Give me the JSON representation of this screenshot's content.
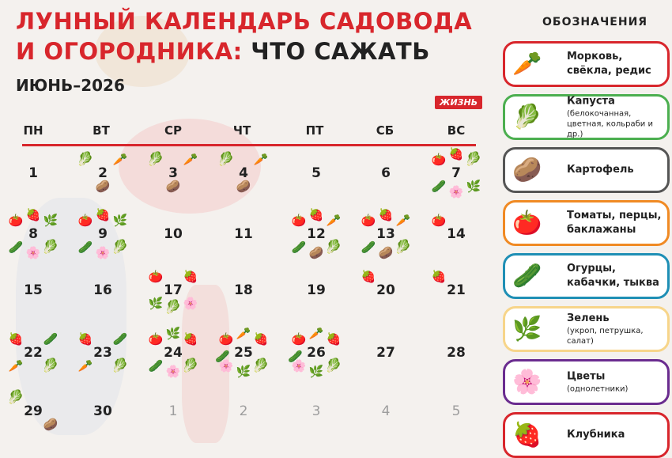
{
  "title": {
    "line1": "ЛУННЫЙ КАЛЕНДАРЬ САДОВОДА",
    "line2_red": "И ОГОРОДНИКА:",
    "line2_dark": "ЧТО САЖАТЬ"
  },
  "month": "ИЮНЬ–2026",
  "brand": "ЖИЗНЬ",
  "weekdays": [
    "ПН",
    "ВТ",
    "СР",
    "ЧТ",
    "ПТ",
    "СБ",
    "ВС"
  ],
  "icons": {
    "carrot": "🥕",
    "cabbage": "🥬",
    "potato": "🥔",
    "tomato": "🍅",
    "cucumber": "🥒",
    "greens": "🌿",
    "flower": "🌸",
    "strawberry": "🍓"
  },
  "days": [
    {
      "d": "1",
      "icons": []
    },
    {
      "d": "2",
      "icons": [
        "cabbage",
        "carrot",
        "potato"
      ]
    },
    {
      "d": "3",
      "icons": [
        "cabbage",
        "carrot",
        "potato"
      ]
    },
    {
      "d": "4",
      "icons": [
        "cabbage",
        "carrot",
        "potato"
      ]
    },
    {
      "d": "5",
      "icons": []
    },
    {
      "d": "6",
      "icons": []
    },
    {
      "d": "7",
      "icons": [
        "tomato",
        "strawberry",
        "cabbage",
        "cucumber",
        "flower",
        "greens"
      ]
    },
    {
      "d": "8",
      "icons": [
        "tomato",
        "strawberry",
        "greens",
        "cucumber",
        "flower",
        "cabbage"
      ]
    },
    {
      "d": "9",
      "icons": [
        "tomato",
        "strawberry",
        "greens",
        "cucumber",
        "flower",
        "cabbage"
      ]
    },
    {
      "d": "10",
      "icons": []
    },
    {
      "d": "11",
      "icons": []
    },
    {
      "d": "12",
      "icons": [
        "tomato",
        "strawberry",
        "carrot",
        "cucumber",
        "potato",
        "cabbage"
      ]
    },
    {
      "d": "13",
      "icons": [
        "tomato",
        "strawberry",
        "carrot",
        "cucumber",
        "potato",
        "cabbage"
      ]
    },
    {
      "d": "14",
      "icons": [
        "tomato"
      ]
    },
    {
      "d": "15",
      "icons": []
    },
    {
      "d": "16",
      "icons": []
    },
    {
      "d": "17",
      "icons": [
        "tomato",
        "strawberry",
        "greens",
        "cabbage",
        "flower"
      ]
    },
    {
      "d": "18",
      "icons": []
    },
    {
      "d": "19",
      "icons": []
    },
    {
      "d": "20",
      "icons": [
        "strawberry"
      ]
    },
    {
      "d": "21",
      "icons": [
        "strawberry"
      ]
    },
    {
      "d": "22",
      "icons": [
        "strawberry",
        "cucumber",
        "carrot",
        "cabbage"
      ]
    },
    {
      "d": "23",
      "icons": [
        "strawberry",
        "cucumber",
        "carrot",
        "cabbage"
      ]
    },
    {
      "d": "24",
      "icons": [
        "tomato",
        "greens",
        "strawberry",
        "cucumber",
        "flower",
        "cabbage"
      ]
    },
    {
      "d": "25",
      "icons": [
        "tomato",
        "carrot",
        "strawberry",
        "cucumber",
        "flower",
        "greens",
        "cabbage"
      ]
    },
    {
      "d": "26",
      "icons": [
        "tomato",
        "carrot",
        "strawberry",
        "cucumber",
        "flower",
        "greens",
        "cabbage"
      ]
    },
    {
      "d": "27",
      "icons": []
    },
    {
      "d": "28",
      "icons": []
    },
    {
      "d": "29",
      "icons": [
        "cabbage",
        "potato"
      ]
    },
    {
      "d": "30",
      "icons": []
    },
    {
      "d": "1",
      "icons": [],
      "dim": true
    },
    {
      "d": "2",
      "icons": [],
      "dim": true
    },
    {
      "d": "3",
      "icons": [],
      "dim": true
    },
    {
      "d": "4",
      "icons": [],
      "dim": true
    },
    {
      "d": "5",
      "icons": [],
      "dim": true
    }
  ],
  "legend": {
    "heading": "ОБОЗНАЧЕНИЯ",
    "items": [
      {
        "icon": "carrot",
        "label": "Морковь, свёкла, редис",
        "sub": "",
        "color": "#d8262c"
      },
      {
        "icon": "cabbage",
        "label": "Капуста",
        "sub": "(белокочанная, цветная, кольраби и др.)",
        "color": "#4caf50"
      },
      {
        "icon": "potato",
        "label": "Картофель",
        "sub": "",
        "color": "#555555"
      },
      {
        "icon": "tomato",
        "label": "Томаты, перцы, баклажаны",
        "sub": "",
        "color": "#f08a24"
      },
      {
        "icon": "cucumber",
        "label": "Огурцы, кабачки, тыква",
        "sub": "",
        "color": "#1f8fb5"
      },
      {
        "icon": "greens",
        "label": "Зелень",
        "sub": "(укроп, петрушка, салат)",
        "color": "#f7d58a"
      },
      {
        "icon": "flower",
        "label": "Цветы",
        "sub": "(однолетники)",
        "color": "#6a2c8f"
      },
      {
        "icon": "strawberry",
        "label": "Клубника",
        "sub": "",
        "color": "#d8262c"
      }
    ]
  }
}
